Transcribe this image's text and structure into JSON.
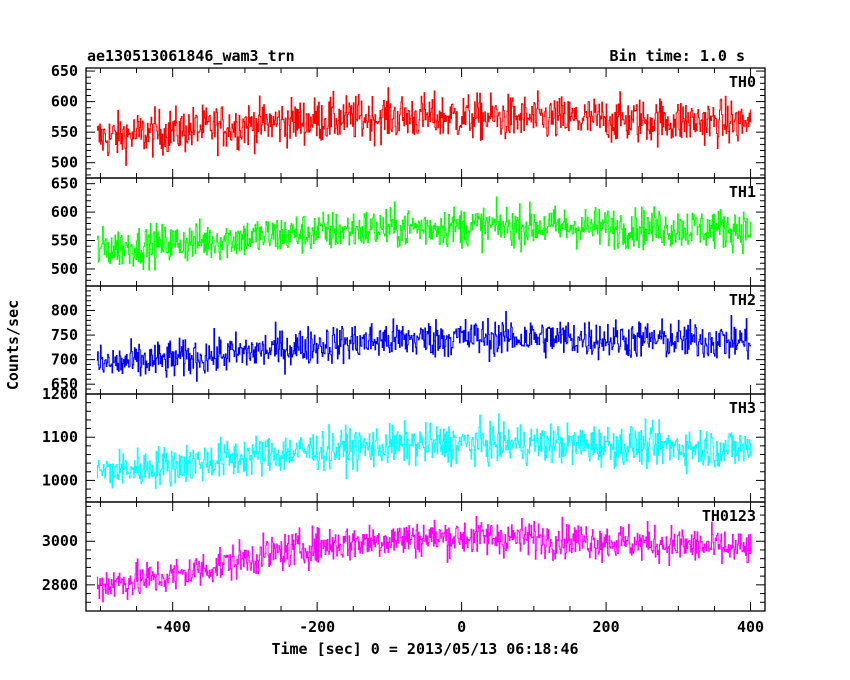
{
  "header": {
    "title": "ae130513061846_wam3_trn",
    "bin_time": "Bin time: 1.0 s"
  },
  "axes": {
    "ylabel": "Counts/sec",
    "xlabel": "Time [sec] 0 = 2013/05/13 06:18:46",
    "x_ticks": [
      "-400",
      "-200",
      "0",
      "200",
      "400"
    ]
  },
  "chart_data": {
    "type": "line",
    "title": "ae130513061846_wam3_trn",
    "xlabel": "Time [sec] 0 = 2013/05/13 06:18:46",
    "ylabel": "Counts/sec",
    "xlim": [
      -520,
      420
    ],
    "x_range_of_data": [
      -505,
      400
    ],
    "bin_time_s": 1.0,
    "panels": [
      {
        "name": "TH0",
        "color": "#ff0000",
        "ylim": [
          475,
          655
        ],
        "yticks": [
          500,
          550,
          600,
          650
        ],
        "trend_x": [
          -505,
          -400,
          -300,
          -200,
          -100,
          0,
          100,
          200,
          300,
          400
        ],
        "trend_y": [
          540,
          552,
          562,
          570,
          575,
          575,
          572,
          570,
          568,
          565
        ],
        "noise_amplitude": 40
      },
      {
        "name": "TH1",
        "color": "#00ff00",
        "ylim": [
          470,
          660
        ],
        "yticks": [
          500,
          550,
          600,
          650
        ],
        "trend_x": [
          -505,
          -400,
          -300,
          -200,
          -100,
          0,
          100,
          200,
          300,
          400
        ],
        "trend_y": [
          535,
          545,
          555,
          565,
          572,
          575,
          575,
          573,
          572,
          570
        ],
        "noise_amplitude": 38
      },
      {
        "name": "TH2",
        "color": "#0000ff",
        "ylim": [
          630,
          850
        ],
        "yticks": [
          650,
          700,
          750,
          800
        ],
        "trend_x": [
          -505,
          -400,
          -300,
          -200,
          -100,
          0,
          100,
          200,
          300,
          400
        ],
        "trend_y": [
          690,
          700,
          715,
          730,
          740,
          745,
          745,
          742,
          740,
          738
        ],
        "noise_amplitude": 42
      },
      {
        "name": "TH3",
        "color": "#00ffff",
        "ylim": [
          950,
          1200
        ],
        "yticks": [
          1000,
          1100,
          1200
        ],
        "trend_x": [
          -505,
          -400,
          -300,
          -200,
          -100,
          0,
          100,
          200,
          300,
          400
        ],
        "trend_y": [
          1020,
          1035,
          1055,
          1070,
          1080,
          1085,
          1085,
          1082,
          1078,
          1072
        ],
        "noise_amplitude": 50
      },
      {
        "name": "TH0123",
        "color": "#ff00ff",
        "ylim": [
          2680,
          3180
        ],
        "yticks": [
          2800,
          3000
        ],
        "trend_x": [
          -505,
          -400,
          -300,
          -200,
          -100,
          0,
          100,
          200,
          300,
          400
        ],
        "trend_y": [
          2800,
          2840,
          2920,
          2980,
          3010,
          3020,
          3015,
          3000,
          2985,
          2960
        ],
        "noise_amplitude": 90
      }
    ]
  }
}
